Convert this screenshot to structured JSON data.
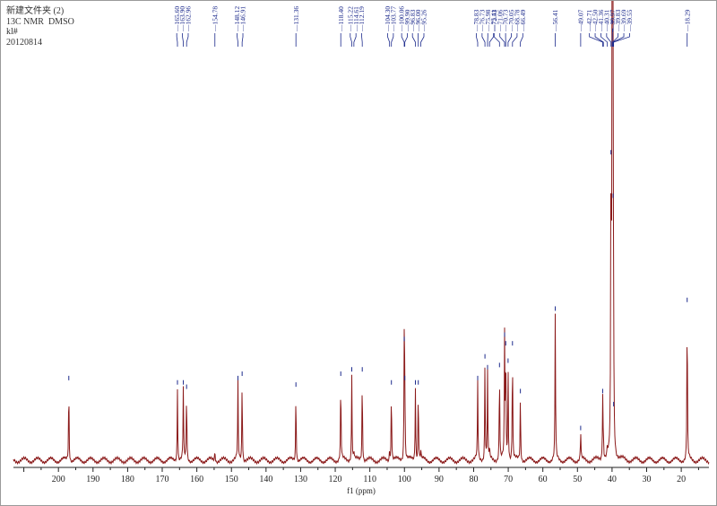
{
  "header": {
    "line1": "新建文件夹 (2)",
    "line2": "13C NMR  DMSO",
    "line3": "kl#",
    "line4": "20120814"
  },
  "colors": {
    "spectrum": "#8b1a1a",
    "labels": "#1c2a8c",
    "axis": "#222222"
  },
  "chart_data": {
    "type": "line",
    "title": "",
    "xlabel": "f1 (ppm)",
    "ylabel": "",
    "xlim": [
      213,
      12
    ],
    "x_reversed": true,
    "x_ticks": [
      200,
      190,
      180,
      170,
      160,
      150,
      140,
      130,
      120,
      110,
      100,
      90,
      80,
      70,
      60,
      50,
      40,
      30,
      20
    ],
    "peak_labels": [
      "165.60",
      "163.90",
      "162.96",
      "154.78",
      "148.12",
      "146.91",
      "131.36",
      "118.40",
      "115.22",
      "114.61",
      "112.19",
      "104.30",
      "103.77",
      "100.06",
      "99.90",
      "96.83",
      "96.00",
      "95.26",
      "78.83",
      "76.73",
      "75.98",
      "75.41",
      "72.53",
      "71.06",
      "70.73",
      "70.05",
      "68.78",
      "66.49",
      "56.41",
      "49.07",
      "42.71",
      "42.50",
      "41.36",
      "40.31",
      "39.97",
      "39.83",
      "39.69",
      "39.55",
      "18.29"
    ],
    "series": [
      {
        "peaks": [
          {
            "x": 197.0,
            "h": 0.18
          },
          {
            "x": 165.6,
            "h": 0.17
          },
          {
            "x": 163.9,
            "h": 0.17
          },
          {
            "x": 162.96,
            "h": 0.16
          },
          {
            "x": 154.78,
            "h": 0.025
          },
          {
            "x": 148.12,
            "h": 0.18
          },
          {
            "x": 146.91,
            "h": 0.19
          },
          {
            "x": 131.36,
            "h": 0.165
          },
          {
            "x": 118.4,
            "h": 0.19
          },
          {
            "x": 115.22,
            "h": 0.2
          },
          {
            "x": 114.61,
            "h": 0.02
          },
          {
            "x": 112.19,
            "h": 0.2
          },
          {
            "x": 104.3,
            "h": 0.025
          },
          {
            "x": 103.77,
            "h": 0.17
          },
          {
            "x": 100.06,
            "h": 0.27
          },
          {
            "x": 99.9,
            "h": 0.18
          },
          {
            "x": 96.83,
            "h": 0.17
          },
          {
            "x": 96.0,
            "h": 0.17
          },
          {
            "x": 95.26,
            "h": 0.02
          },
          {
            "x": 78.83,
            "h": 0.18
          },
          {
            "x": 76.73,
            "h": 0.23
          },
          {
            "x": 75.98,
            "h": 0.205
          },
          {
            "x": 75.41,
            "h": 0.02
          },
          {
            "x": 72.53,
            "h": 0.21
          },
          {
            "x": 71.06,
            "h": 0.28
          },
          {
            "x": 70.73,
            "h": 0.26
          },
          {
            "x": 70.05,
            "h": 0.22
          },
          {
            "x": 68.78,
            "h": 0.26
          },
          {
            "x": 66.49,
            "h": 0.15
          },
          {
            "x": 56.41,
            "h": 0.34
          },
          {
            "x": 49.07,
            "h": 0.065
          },
          {
            "x": 42.71,
            "h": 0.15
          },
          {
            "x": 42.5,
            "h": 0.05
          },
          {
            "x": 41.36,
            "h": 0.02
          },
          {
            "x": 40.31,
            "h": 0.7
          },
          {
            "x": 39.97,
            "h": 1.0
          },
          {
            "x": 39.83,
            "h": 0.98
          },
          {
            "x": 39.69,
            "h": 0.6
          },
          {
            "x": 39.55,
            "h": 0.12
          },
          {
            "x": 18.29,
            "h": 0.36
          }
        ]
      }
    ],
    "grid": false
  }
}
